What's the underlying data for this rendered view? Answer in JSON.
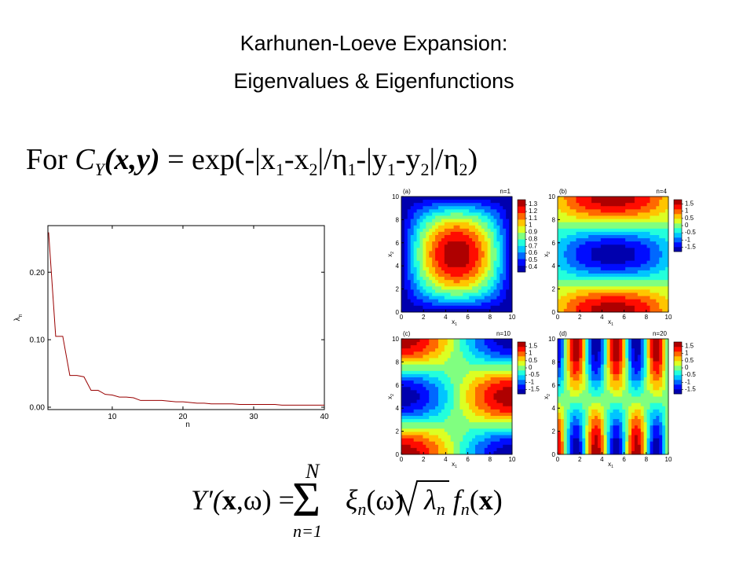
{
  "title": [
    "Karhunen-Loeve Expansion:",
    "Eigenvalues & Eigenfunctions"
  ],
  "formula": [
    "For ",
    "C",
    "Y",
    "(x,y)",
    " = exp(-|x",
    "1",
    "-x",
    "2",
    "|/η",
    "1",
    "-|y",
    "1",
    "-y",
    "2",
    "|/η",
    "2",
    ")"
  ],
  "equation": [
    "Y′(",
    "x",
    ",ω) =",
    "Σ",
    "N",
    "n=1",
    "ξ",
    "n",
    "(ω)",
    "λ",
    "n",
    "f",
    "n",
    "(",
    "x",
    ")"
  ],
  "chart_data": {
    "type": "line",
    "x": [
      1,
      2,
      3,
      4,
      5,
      6,
      7,
      8,
      9,
      10,
      11,
      12,
      13,
      14,
      15,
      16,
      17,
      18,
      19,
      20,
      21,
      22,
      23,
      24,
      25,
      26,
      27,
      28,
      29,
      30,
      31,
      32,
      33,
      34,
      35,
      36,
      37,
      38,
      39,
      40
    ],
    "values": [
      0.259,
      0.105,
      0.105,
      0.047,
      0.047,
      0.045,
      0.025,
      0.025,
      0.019,
      0.018,
      0.015,
      0.015,
      0.014,
      0.01,
      0.01,
      0.01,
      0.01,
      0.009,
      0.008,
      0.008,
      0.007,
      0.006,
      0.006,
      0.005,
      0.005,
      0.005,
      0.005,
      0.004,
      0.004,
      0.004,
      0.004,
      0.004,
      0.004,
      0.003,
      0.003,
      0.003,
      0.003,
      0.003,
      0.003,
      0.003
    ],
    "color": "#990000",
    "xlim": [
      0.9,
      40
    ],
    "xticks": [
      10,
      20,
      30,
      40
    ],
    "ylim": [
      -0.0035,
      0.269
    ],
    "yticks": [
      {
        "value": 0,
        "label": "0.00"
      },
      {
        "value": 0.1,
        "label": "0.10"
      },
      {
        "value": 0.2,
        "label": "0.20"
      }
    ],
    "x_label": "n",
    "y_label": "λ",
    "y_label_sub": "n"
  },
  "panels": [
    {
      "tag": "(a)",
      "mode": "n=1",
      "clim": [
        0.33,
        1.37
      ],
      "colorbar_ticks": [
        1.3,
        1.2,
        1.1,
        1,
        0.9,
        0.8,
        0.7,
        0.6,
        0.5,
        0.4
      ]
    },
    {
      "tag": "(b)",
      "mode": "n=4",
      "clim": [
        -1.8,
        1.8
      ],
      "colorbar_ticks": [
        1.5,
        1,
        0.5,
        0,
        -0.5,
        -1,
        -1.5
      ]
    },
    {
      "tag": "(c)",
      "mode": "n=10",
      "clim": [
        -1.8,
        1.8
      ],
      "colorbar_ticks": [
        1.5,
        1,
        0.5,
        0,
        -0.5,
        -1,
        -1.5
      ]
    },
    {
      "tag": "(d)",
      "mode": "n=20",
      "clim": [
        -1.8,
        1.8
      ],
      "colorbar_ticks": [
        1.5,
        1,
        0.5,
        0,
        -0.5,
        -1,
        -1.5
      ]
    }
  ],
  "panel_lim": [
    0,
    10
  ],
  "panel_ticks": [
    0,
    2,
    4,
    6,
    8,
    10
  ],
  "panel_xlabel": "x",
  "panel_xlabel_sub": "1",
  "panel_ylabel": "x",
  "panel_ylabel_sub": "2"
}
